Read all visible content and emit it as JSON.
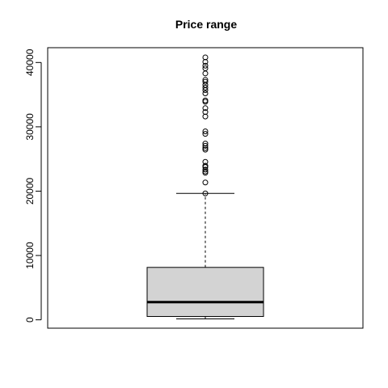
{
  "chart_data": {
    "type": "box",
    "title": "Price range",
    "xlabel": "",
    "ylabel": "",
    "ylim": [
      -1300,
      42300
    ],
    "yticks": [
      0,
      10000,
      20000,
      30000,
      40000
    ],
    "ytick_labels": [
      "0",
      "10000",
      "20000",
      "30000",
      "40000"
    ],
    "grid": false,
    "box": {
      "lower_whisker": 150,
      "q1": 520,
      "median": 2750,
      "q3": 8150,
      "upper_whisker": 19650
    },
    "outliers": [
      19650,
      21350,
      22850,
      23050,
      23350,
      23750,
      23950,
      24550,
      26450,
      26700,
      27050,
      27400,
      28900,
      29300,
      31600,
      32300,
      32900,
      33900,
      34100,
      35200,
      35700,
      36100,
      36500,
      37000,
      37300,
      38300,
      39100,
      39500,
      40100,
      40800
    ],
    "colors": {
      "box_fill": "#d3d3d3",
      "stroke": "#000000"
    }
  }
}
